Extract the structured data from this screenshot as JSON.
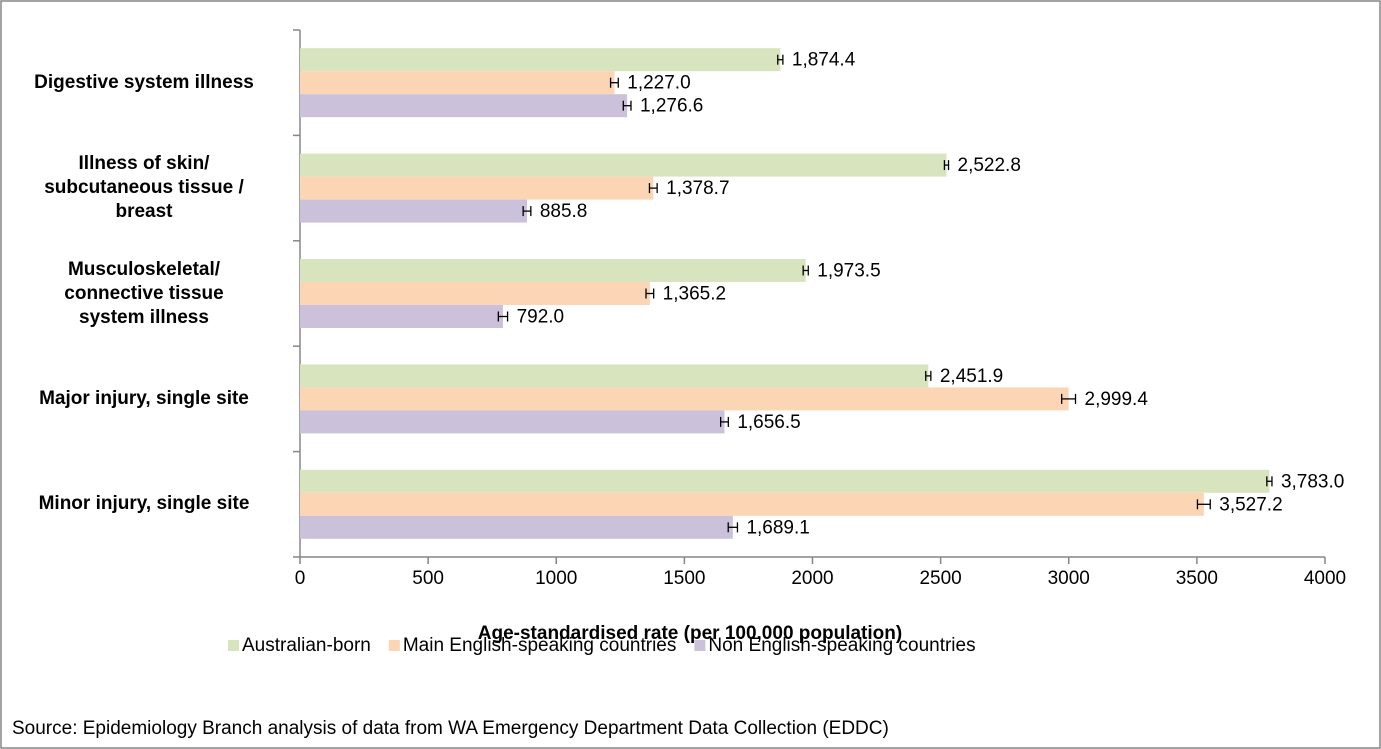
{
  "chart_data": {
    "type": "barh",
    "categories": [
      "Digestive system illness",
      "Illness of skin/\nsubcutaneous tissue /\nbreast",
      "Musculoskeletal/\nconnective tissue\nsystem illness",
      "Major injury, single site",
      "Minor injury, single site"
    ],
    "series": [
      {
        "name": "Australian-born",
        "color": "#d7e4bd",
        "values": [
          1874.4,
          2522.8,
          1973.5,
          2451.9,
          3783.0
        ],
        "errors": [
          10,
          8,
          10,
          10,
          10
        ],
        "value_labels": [
          "1,874.4",
          "2,522.8",
          "1,973.5",
          "2,451.9",
          "3,783.0"
        ]
      },
      {
        "name": "Main English-speaking countries",
        "color": "#fcd5b5",
        "values": [
          1227.0,
          1378.7,
          1365.2,
          2999.4,
          3527.2
        ],
        "errors": [
          15,
          15,
          15,
          27,
          25
        ],
        "value_labels": [
          "1,227.0",
          "1,378.7",
          "1,365.2",
          "2,999.4",
          "3,527.2"
        ]
      },
      {
        "name": "Non English-speaking countries",
        "color": "#ccc1da",
        "values": [
          1276.6,
          885.8,
          792.0,
          1656.5,
          1689.1
        ],
        "errors": [
          15,
          15,
          18,
          15,
          18
        ],
        "value_labels": [
          "1,276.6",
          "885.8",
          "792.0",
          "1,656.5",
          "1,689.1"
        ]
      }
    ],
    "xlabel": "Age-standardised rate (per 100,000 population)",
    "xlim": [
      0,
      4000
    ],
    "xticks": [
      0,
      500,
      1000,
      1500,
      2000,
      2500,
      3000,
      3500,
      4000
    ],
    "grid": false,
    "legend": "bottom",
    "source": "Source: Epidemiology Branch analysis of data from WA Emergency Department Data Collection (EDDC)"
  }
}
